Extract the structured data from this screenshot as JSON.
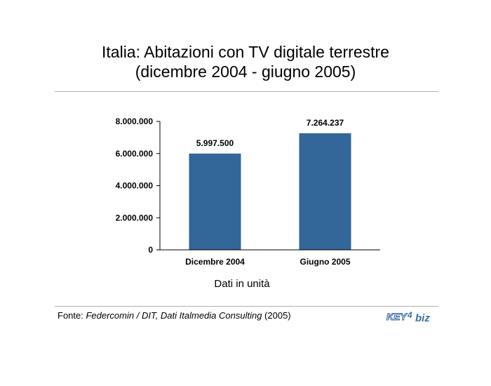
{
  "header": {
    "title_line1": "Italia: Abitazioni con TV digitale terrestre",
    "title_line2": "(dicembre 2004 - giugno 2005)"
  },
  "chart_data": {
    "type": "bar",
    "title": "Italia: Abitazioni con TV digitale terrestre (dicembre 2004 - giugno 2005)",
    "categories": [
      "Dicembre 2004",
      "Giugno 2005"
    ],
    "values": [
      5997500,
      7264237
    ],
    "value_labels": [
      "5.997.500",
      "7.264.237"
    ],
    "ylim": [
      0,
      8000000
    ],
    "yticks": [
      0,
      2000000,
      4000000,
      6000000,
      8000000
    ],
    "ytick_labels": [
      "0",
      "2.000.000",
      "4.000.000",
      "6.000.000",
      "8.000.000"
    ],
    "xlabel": "Dati in unità",
    "ylabel": "",
    "grid": false,
    "bar_color": "#336699"
  },
  "footer": {
    "source_prefix": "Fonte: ",
    "source_italic": "Federcomin / DIT, Dati Italmedia Consulting",
    "source_suffix": " (2005)",
    "logo_text": "KEY4biz",
    "logo_part1": "KEY",
    "logo_part2": "4",
    "logo_part3": "biz"
  },
  "colors": {
    "bar": "#336699",
    "logo": "#3d6fa8"
  }
}
